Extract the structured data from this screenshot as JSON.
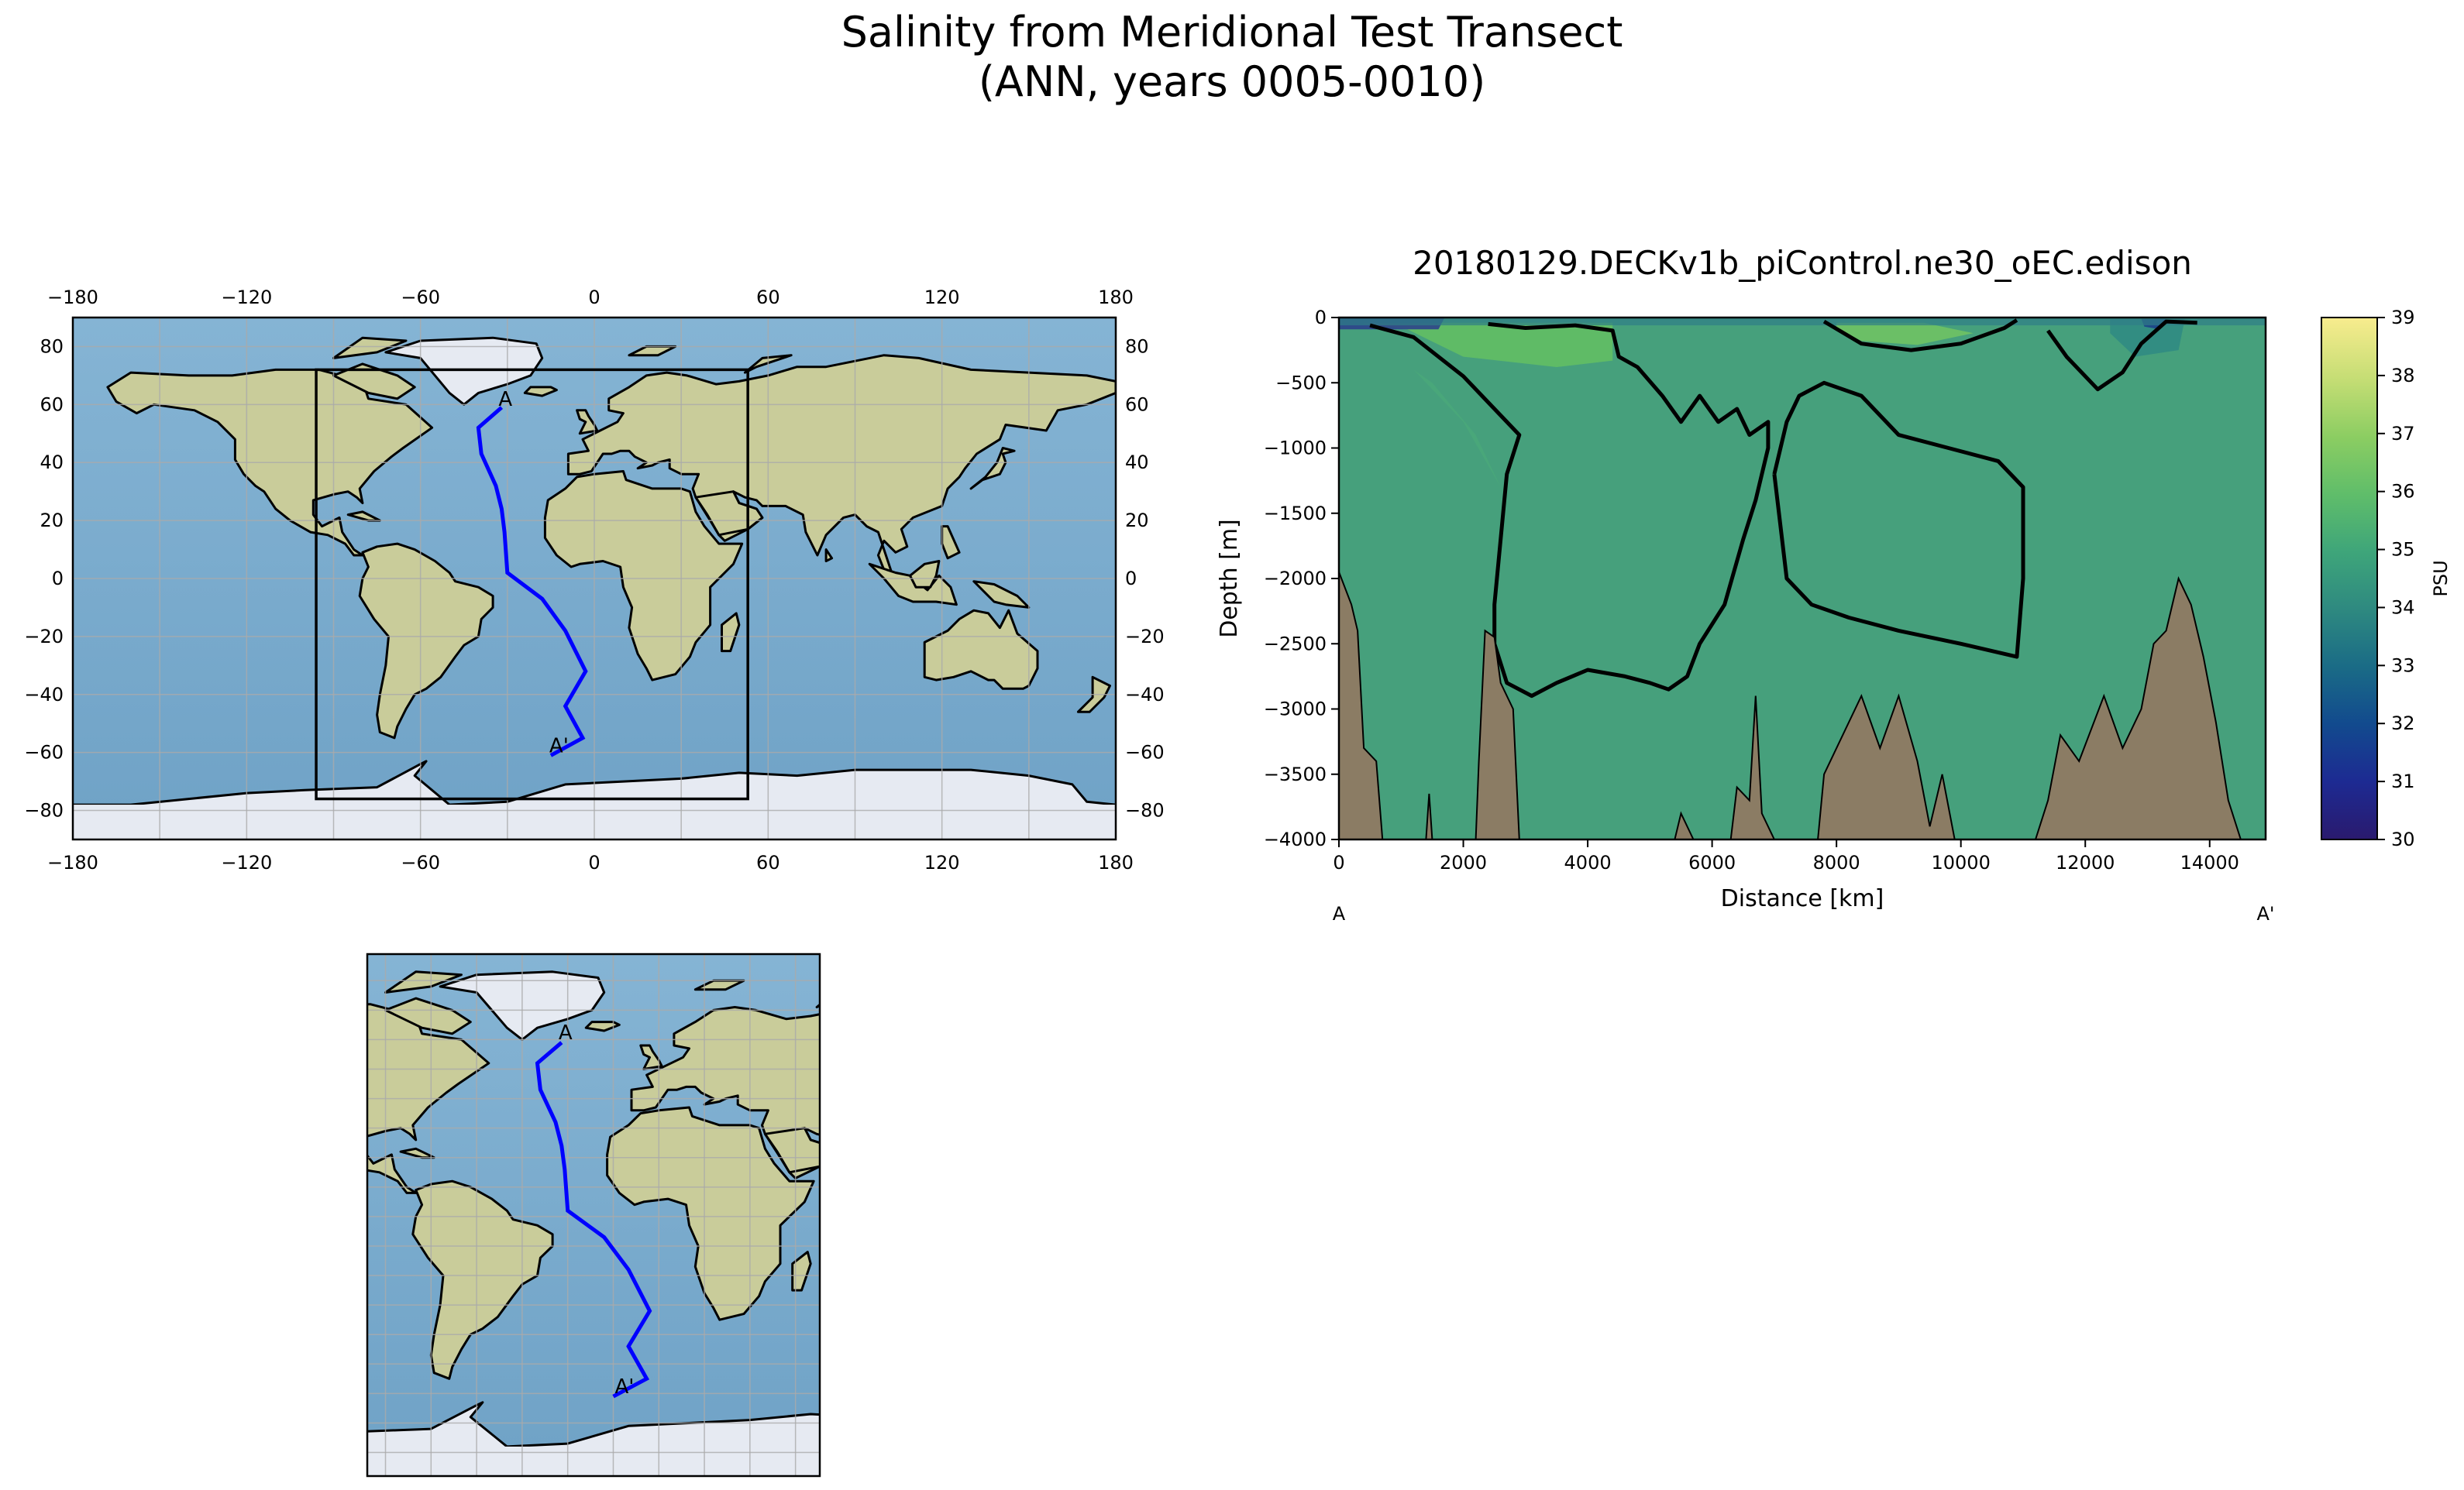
{
  "figure": {
    "title_line1": "Salinity from Meridional Test Transect",
    "title_line2": "(ANN, years 0005-0010)"
  },
  "colors": {
    "ocean": "#7eaecf",
    "land": "#c9cc9a",
    "ice": "#e6eaf2",
    "transect": "#0000ff",
    "seafloor": "#8b7c64",
    "grid": "#aaaaaa"
  },
  "map_global": {
    "lon_ticks": [
      "−180",
      "−120",
      "−60",
      "0",
      "60",
      "120",
      "180"
    ],
    "lat_ticks": [
      "80",
      "60",
      "40",
      "20",
      "0",
      "−20",
      "−40",
      "−60",
      "−80"
    ],
    "lon_range": [
      -180,
      180
    ],
    "lat_range": [
      -90,
      90
    ],
    "start_label": "A",
    "end_label": "A'",
    "box": {
      "lon": [
        -96,
        53
      ],
      "lat": [
        -76,
        72
      ]
    }
  },
  "map_zoom": {
    "start_label": "A",
    "end_label": "A'"
  },
  "chart_data": {
    "type": "heatmap",
    "title": "20180129.DECKv1b_piControl.ne30_oEC.edison",
    "xlabel": "Distance [km]",
    "ylabel": "Depth [m]",
    "xlim": [
      0,
      14900
    ],
    "ylim": [
      -4000,
      0
    ],
    "x_ticks": [
      "0",
      "2000",
      "4000",
      "6000",
      "8000",
      "10000",
      "12000",
      "14000"
    ],
    "y_ticks": [
      "0",
      "−500",
      "−1000",
      "−1500",
      "−2000",
      "−2500",
      "−3000",
      "−3500",
      "−4000"
    ],
    "x_start_label": "A",
    "x_end_label": "A'",
    "colorbar": {
      "label": "PSU",
      "range": [
        30,
        39
      ],
      "ticks": [
        "39",
        "38",
        "37",
        "36",
        "35",
        "34",
        "33",
        "32",
        "31",
        "30"
      ]
    }
  }
}
